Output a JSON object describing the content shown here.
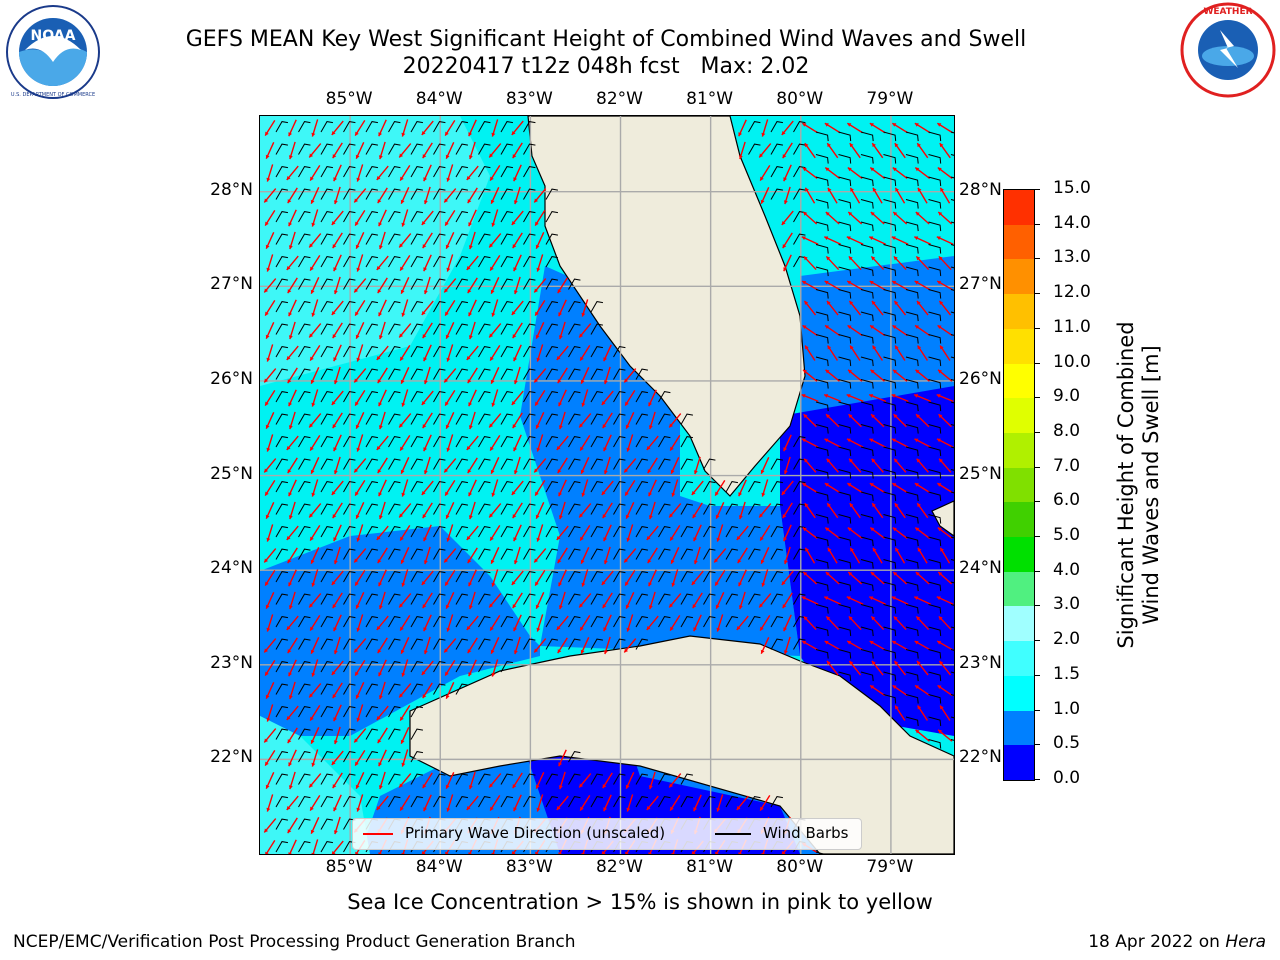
{
  "title": {
    "line1": "GEFS MEAN Key West Significant Height of Combined Wind Waves and Swell",
    "line2": "20220417 t12z 048h fcst   Max: 2.02"
  },
  "logos": {
    "left": "NOAA",
    "left_ring_text": "NATIONAL OCEANIC AND ATMOSPHERIC ADMINISTRATION · U.S. DEPARTMENT OF COMMERCE",
    "right_ring_text": "NATIONAL WEATHER SERVICE"
  },
  "axes": {
    "lon_labels": [
      "85°W",
      "84°W",
      "83°W",
      "82°W",
      "81°W",
      "80°W",
      "79°W"
    ],
    "lat_labels": [
      "28°N",
      "27°N",
      "26°N",
      "25°N",
      "24°N",
      "23°N",
      "22°N"
    ],
    "lon_values": [
      -85,
      -84,
      -83,
      -82,
      -81,
      -80,
      -79
    ],
    "lat_values": [
      28,
      27,
      26,
      25,
      24,
      23,
      22
    ],
    "lon_range": [
      -86.0,
      -78.3
    ],
    "lat_range": [
      21.0,
      28.8
    ]
  },
  "colorbar": {
    "label_line1": "Significant Height of Combined",
    "label_line2": "Wind Waves and Swell [m]",
    "ticks": [
      "0.0",
      "0.5",
      "1.0",
      "1.5",
      "2.0",
      "3.0",
      "4.0",
      "5.0",
      "6.0",
      "7.0",
      "8.0",
      "9.0",
      "10.0",
      "11.0",
      "12.0",
      "13.0",
      "14.0",
      "15.0"
    ],
    "colors": [
      "#0000ff",
      "#0080ff",
      "#00ffff",
      "#40ffff",
      "#a0ffff",
      "#50f080",
      "#00e000",
      "#40d000",
      "#80e000",
      "#b0f000",
      "#e0ff00",
      "#ffff00",
      "#ffe000",
      "#ffc000",
      "#ff9000",
      "#ff6000",
      "#ff3000"
    ]
  },
  "legend": {
    "wave_label": "Primary Wave Direction (unscaled)",
    "barb_label": "Wind Barbs",
    "wave_color": "#ff0000",
    "barb_color": "#000000"
  },
  "note": "Sea Ice Concentration > 15% is shown in pink to yellow",
  "footer": {
    "left": "NCEP/EMC/Verification Post Processing Product Generation Branch",
    "right_prefix": "18 Apr 2022 on ",
    "right_machine": "Hera"
  }
}
